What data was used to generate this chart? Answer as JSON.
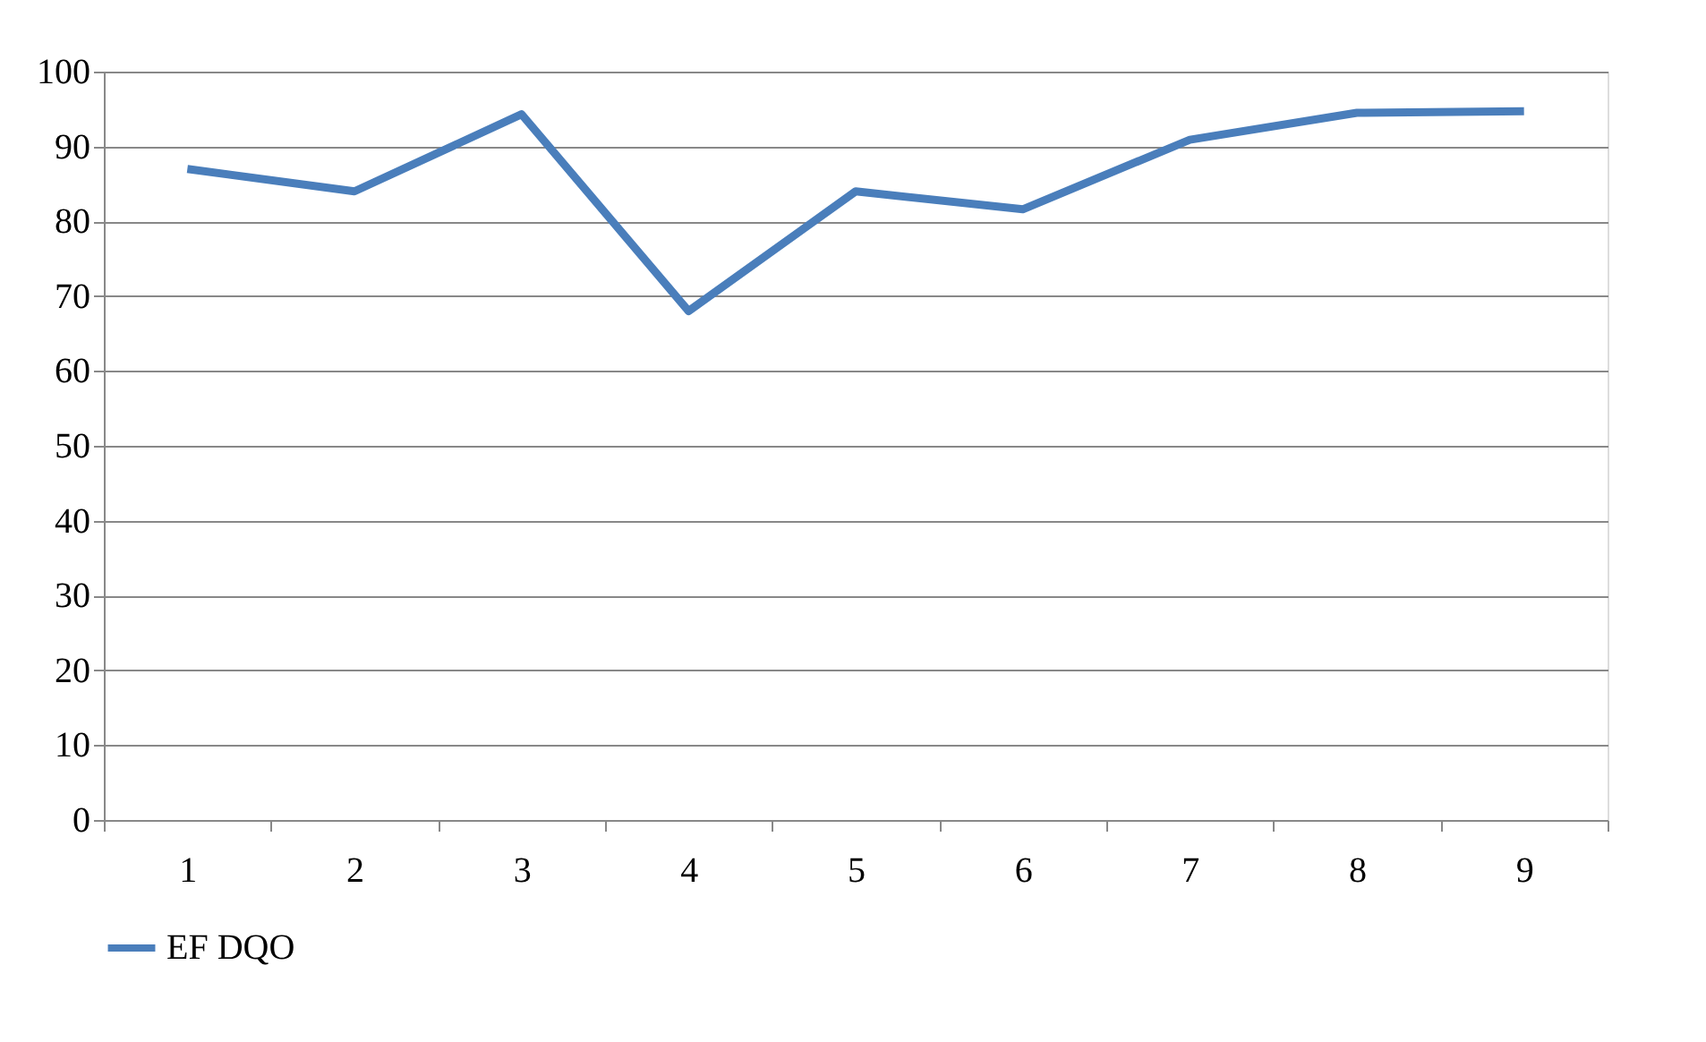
{
  "chart_data": {
    "type": "line",
    "categories": [
      "1",
      "2",
      "3",
      "4",
      "5",
      "6",
      "7",
      "8",
      "9"
    ],
    "series": [
      {
        "name": "EF DQO",
        "color": "#4a7ebb",
        "values": [
          87,
          84,
          94.3,
          68,
          84,
          81.6,
          90.9,
          94.5,
          94.7
        ]
      }
    ],
    "ylim": [
      0,
      100
    ],
    "yticks": [
      0,
      10,
      20,
      30,
      40,
      50,
      60,
      70,
      80,
      90,
      100
    ],
    "grid": "y",
    "legend": "bottom",
    "marker": "none",
    "line_style": "solid"
  }
}
